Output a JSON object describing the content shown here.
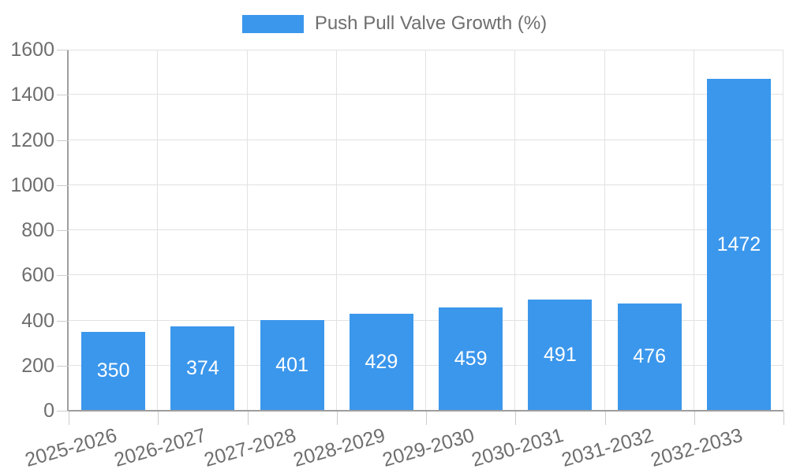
{
  "chart_data": {
    "type": "bar",
    "title": "Push Pull Valve Growth (%)",
    "categories": [
      "2025-2026",
      "2026-2027",
      "2027-2028",
      "2028-2029",
      "2029-2030",
      "2030-2031",
      "2031-2032",
      "2032-2033"
    ],
    "values": [
      350,
      374,
      401,
      429,
      459,
      491,
      476,
      1472
    ],
    "value_labels": [
      "350",
      "374",
      "401",
      "429",
      "459",
      "491",
      "476",
      "1472"
    ],
    "yticks": [
      0,
      200,
      400,
      600,
      800,
      1000,
      1200,
      1400,
      1600
    ],
    "ylim": [
      0,
      1600
    ],
    "xlabel": "",
    "ylabel": "",
    "grid": true,
    "legend_position": "top",
    "bar_color": "#3B97EC",
    "value_label_color": "#FFFFFF",
    "text_color": "#6E6E6E",
    "axis_color": "#9E9E9E",
    "grid_color": "#E2E2E2"
  }
}
